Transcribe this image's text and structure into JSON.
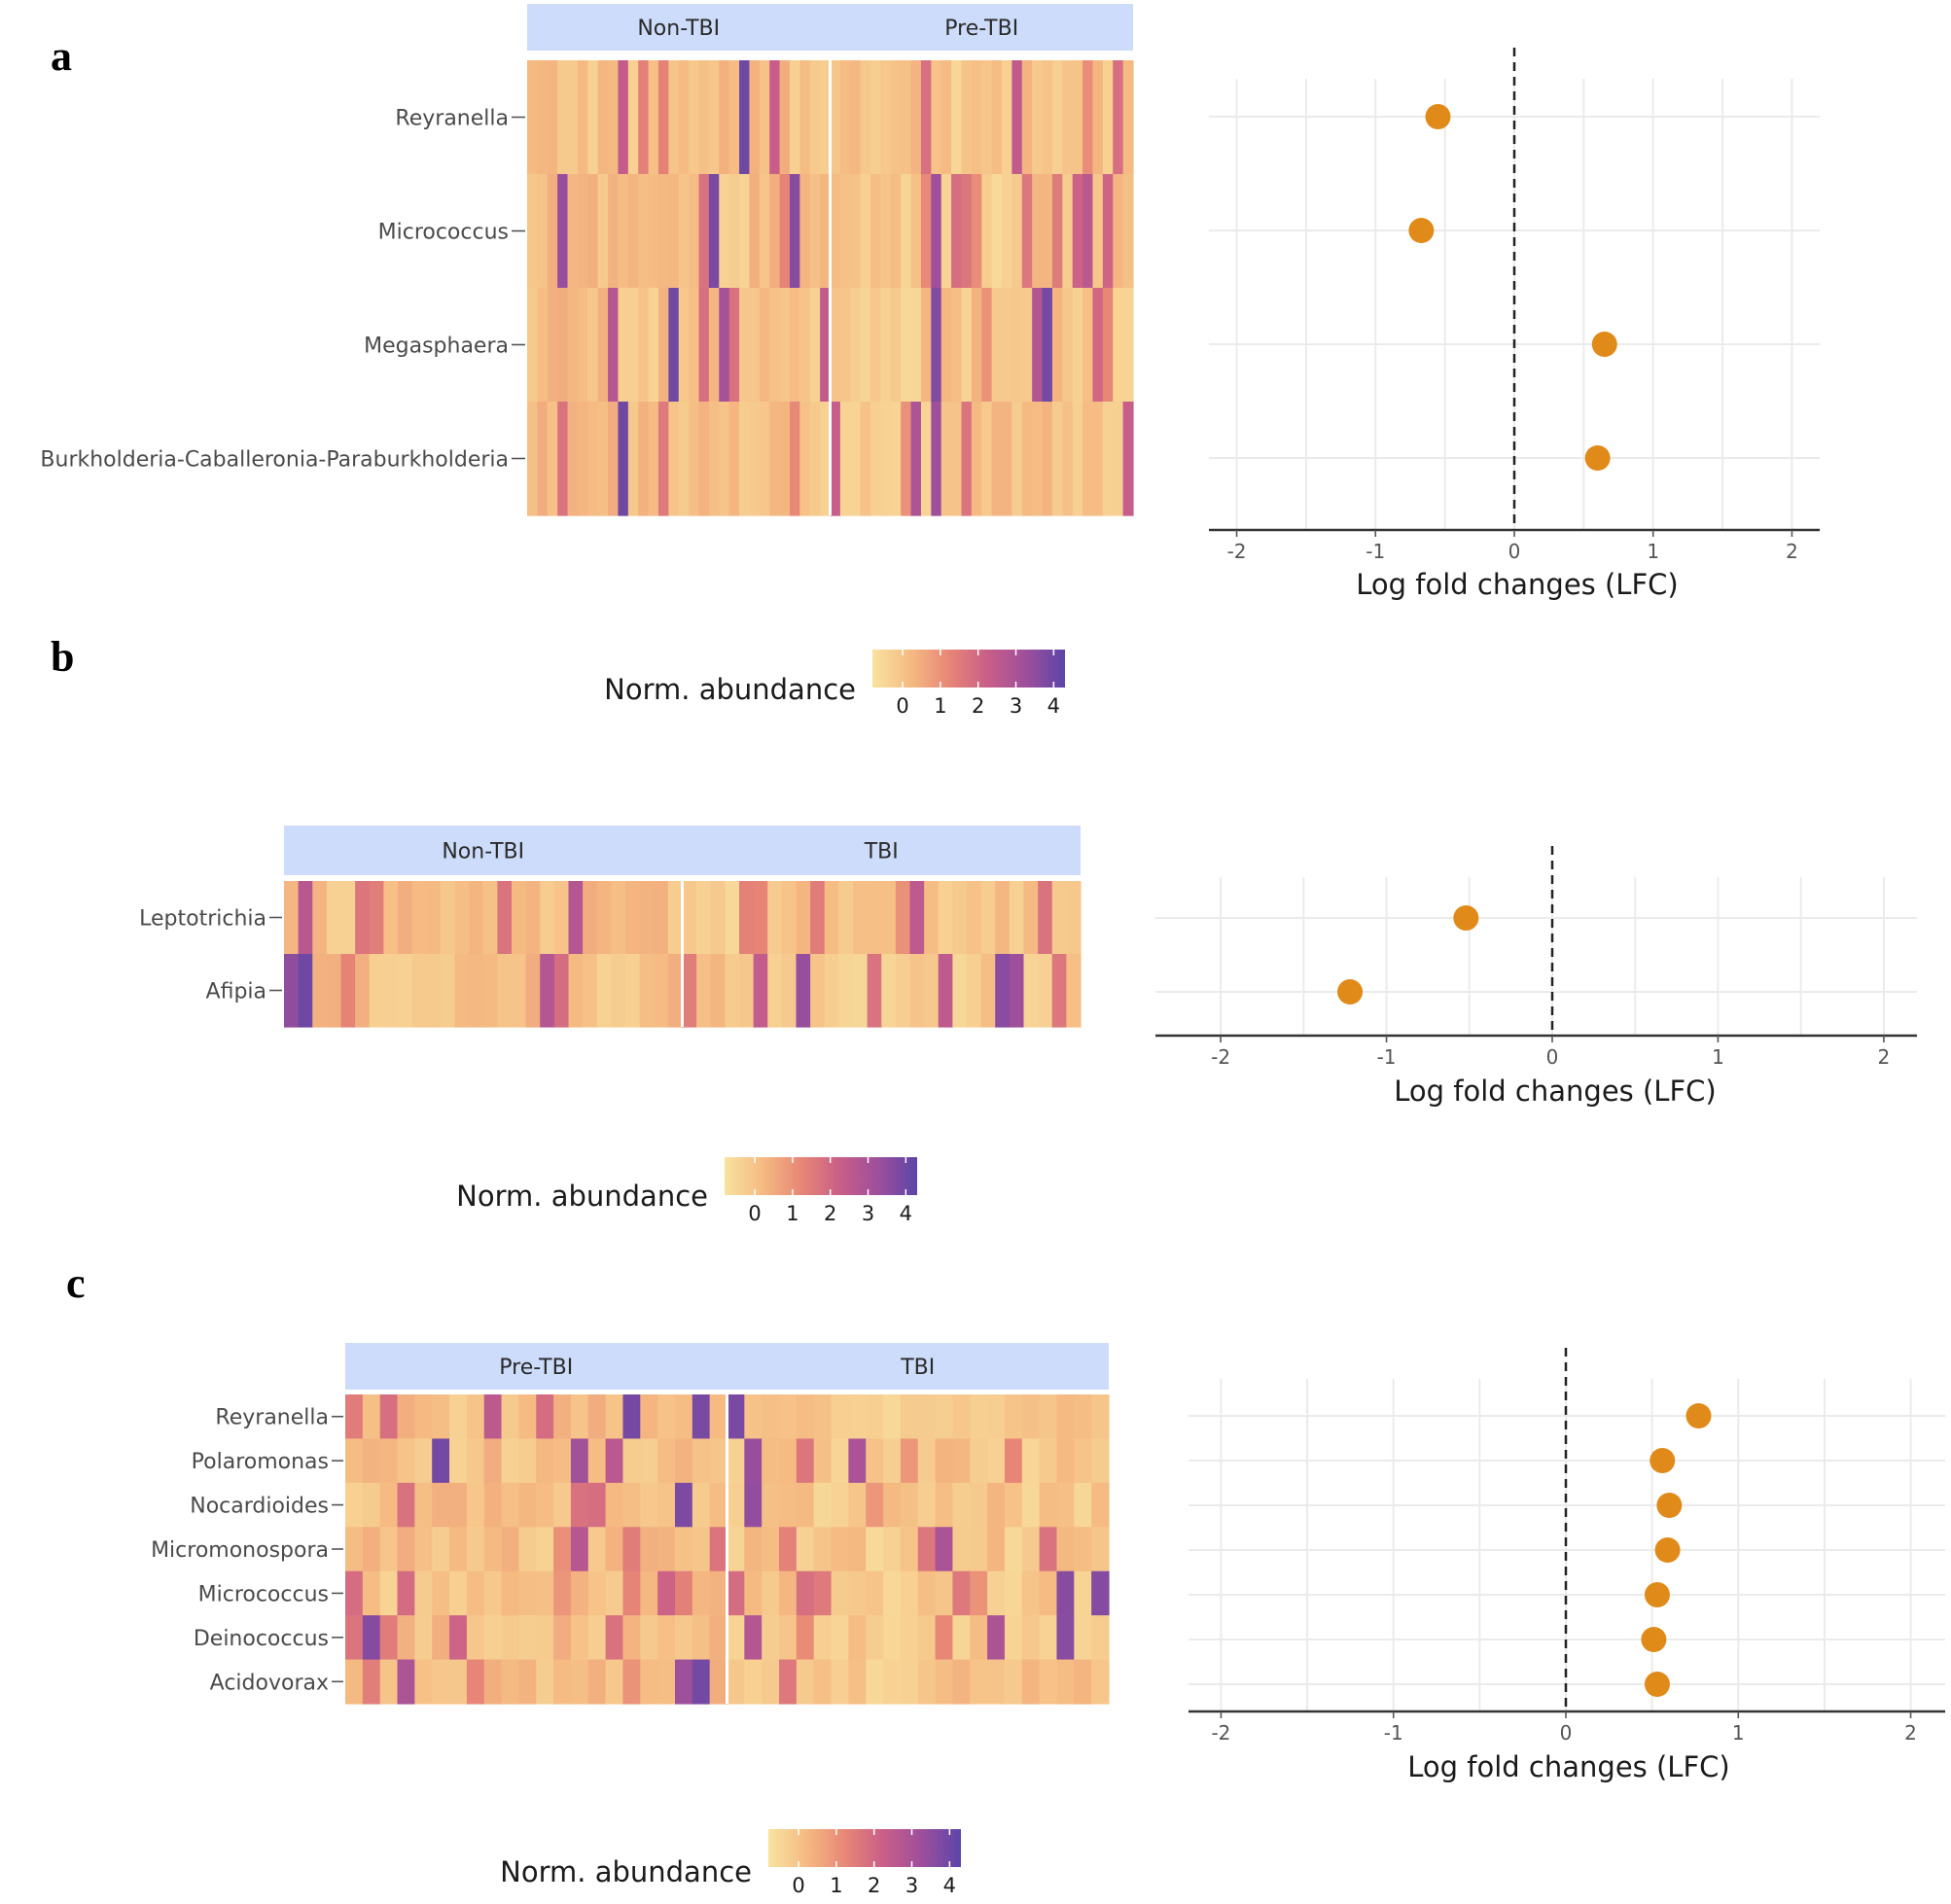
{
  "chart_data": [
    {
      "panel": "a",
      "type": "heatmap",
      "heatmap_groups": [
        "Non-TBI",
        "Pre-TBI"
      ],
      "taxa": [
        "Reyranella",
        "Micrococcus",
        "Megasphaera",
        "Burkholderia-Caballeronia-Paraburkholderia"
      ],
      "legend": {
        "title": "Norm. abundance",
        "ticks": [
          "0",
          "1",
          "2",
          "3",
          "4"
        ],
        "range": [
          -0.8,
          4.3
        ]
      },
      "lfc_plot": {
        "type": "scatter",
        "points": [
          {
            "taxon": "Reyranella",
            "lfc": -0.55
          },
          {
            "taxon": "Micrococcus",
            "lfc": -0.67
          },
          {
            "taxon": "Megasphaera",
            "lfc": 0.65
          },
          {
            "taxon": "Burkholderia-Caballeronia-Paraburkholderia",
            "lfc": 0.6
          }
        ],
        "xlabel": "Log fold changes (LFC)",
        "xlim": [
          -2.2,
          2.2
        ],
        "xticks": [
          "-2",
          "-1",
          "0",
          "1",
          "2"
        ],
        "ref_line": 0
      }
    },
    {
      "panel": "b",
      "type": "heatmap",
      "heatmap_groups": [
        "Non-TBI",
        "TBI"
      ],
      "taxa": [
        "Leptotrichia",
        "Afipia"
      ],
      "legend": {
        "title": "Norm. abundance",
        "ticks": [
          "0",
          "1",
          "2",
          "3",
          "4"
        ],
        "range": [
          -0.8,
          4.3
        ]
      },
      "lfc_plot": {
        "type": "scatter",
        "points": [
          {
            "taxon": "Leptotrichia",
            "lfc": -0.52
          },
          {
            "taxon": "Afipia",
            "lfc": -1.22
          }
        ],
        "xlabel": "Log fold changes (LFC)",
        "xlim": [
          -2.2,
          2.2
        ],
        "xticks": [
          "-2",
          "-1",
          "0",
          "1",
          "2"
        ],
        "ref_line": 0
      }
    },
    {
      "panel": "c",
      "type": "heatmap",
      "heatmap_groups": [
        "Pre-TBI",
        "TBI"
      ],
      "taxa": [
        "Reyranella",
        "Polaromonas",
        "Nocardioides",
        "Micromonospora",
        "Micrococcus",
        "Deinococcus",
        "Acidovorax"
      ],
      "legend": {
        "title": "Norm. abundance",
        "ticks": [
          "0",
          "1",
          "2",
          "3",
          "4"
        ],
        "range": [
          -0.8,
          4.3
        ]
      },
      "lfc_plot": {
        "type": "scatter",
        "points": [
          {
            "taxon": "Reyranella",
            "lfc": 0.77
          },
          {
            "taxon": "Polaromonas",
            "lfc": 0.56
          },
          {
            "taxon": "Nocardioides",
            "lfc": 0.6
          },
          {
            "taxon": "Micromonospora",
            "lfc": 0.59
          },
          {
            "taxon": "Micrococcus",
            "lfc": 0.53
          },
          {
            "taxon": "Deinococcus",
            "lfc": 0.51
          },
          {
            "taxon": "Acidovorax",
            "lfc": 0.53
          }
        ],
        "xlabel": "Log fold changes (LFC)",
        "xlim": [
          -2.2,
          2.2
        ],
        "xticks": [
          "-2",
          "-1",
          "0",
          "1",
          "2"
        ],
        "ref_line": 0
      }
    }
  ],
  "colors": {
    "strip": "#ccdcfa",
    "point": "#e08a1a",
    "scale": [
      "#f8e3a0",
      "#f5ba82",
      "#e78676",
      "#c95e88",
      "#9d4f9c",
      "#5b45a8"
    ]
  }
}
